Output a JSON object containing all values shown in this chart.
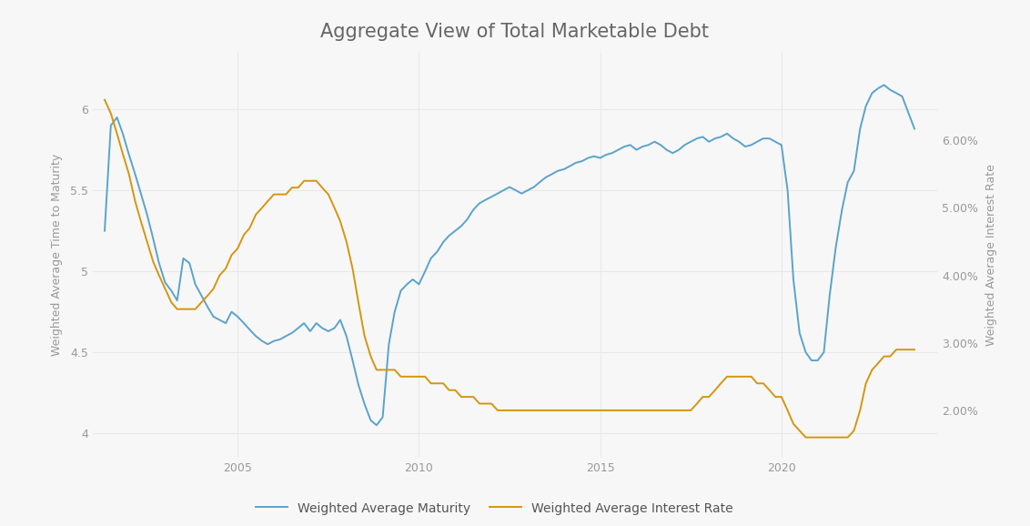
{
  "title": "Aggregate View of Total Marketable Debt",
  "ylabel_left": "Weighted Average Time to Maturity",
  "ylabel_right": "Weighted Average Interest Rate",
  "line1_label": "Weighted Average Maturity",
  "line2_label": "Weighted Average Interest Rate",
  "line1_color": "#5ba3c9",
  "line2_color": "#d4960f",
  "background_color": "#f7f7f7",
  "grid_color": "#e8e8e8",
  "ylim_left": [
    3.85,
    6.35
  ],
  "ylim_right": [
    0.013,
    0.073
  ],
  "yticks_left": [
    4.0,
    4.5,
    5.0,
    5.5,
    6.0
  ],
  "yticks_right": [
    0.02,
    0.03,
    0.04,
    0.05,
    0.06
  ],
  "title_fontsize": 15,
  "label_fontsize": 9,
  "tick_fontsize": 9,
  "legend_fontsize": 10,
  "line_width": 1.4,
  "maturity_data": [
    [
      2001.33,
      5.25
    ],
    [
      2001.5,
      5.9
    ],
    [
      2001.67,
      5.95
    ],
    [
      2001.83,
      5.85
    ],
    [
      2002.0,
      5.72
    ],
    [
      2002.17,
      5.6
    ],
    [
      2002.33,
      5.48
    ],
    [
      2002.5,
      5.35
    ],
    [
      2002.67,
      5.2
    ],
    [
      2002.83,
      5.05
    ],
    [
      2003.0,
      4.93
    ],
    [
      2003.17,
      4.88
    ],
    [
      2003.33,
      4.82
    ],
    [
      2003.5,
      5.08
    ],
    [
      2003.67,
      5.05
    ],
    [
      2003.83,
      4.92
    ],
    [
      2004.0,
      4.85
    ],
    [
      2004.17,
      4.78
    ],
    [
      2004.33,
      4.72
    ],
    [
      2004.5,
      4.7
    ],
    [
      2004.67,
      4.68
    ],
    [
      2004.83,
      4.75
    ],
    [
      2005.0,
      4.72
    ],
    [
      2005.17,
      4.68
    ],
    [
      2005.33,
      4.64
    ],
    [
      2005.5,
      4.6
    ],
    [
      2005.67,
      4.57
    ],
    [
      2005.83,
      4.55
    ],
    [
      2006.0,
      4.57
    ],
    [
      2006.17,
      4.58
    ],
    [
      2006.33,
      4.6
    ],
    [
      2006.5,
      4.62
    ],
    [
      2006.67,
      4.65
    ],
    [
      2006.83,
      4.68
    ],
    [
      2007.0,
      4.63
    ],
    [
      2007.17,
      4.68
    ],
    [
      2007.33,
      4.65
    ],
    [
      2007.5,
      4.63
    ],
    [
      2007.67,
      4.65
    ],
    [
      2007.83,
      4.7
    ],
    [
      2008.0,
      4.6
    ],
    [
      2008.17,
      4.45
    ],
    [
      2008.33,
      4.3
    ],
    [
      2008.5,
      4.18
    ],
    [
      2008.67,
      4.08
    ],
    [
      2008.83,
      4.05
    ],
    [
      2009.0,
      4.1
    ],
    [
      2009.17,
      4.55
    ],
    [
      2009.33,
      4.75
    ],
    [
      2009.5,
      4.88
    ],
    [
      2009.67,
      4.92
    ],
    [
      2009.83,
      4.95
    ],
    [
      2010.0,
      4.92
    ],
    [
      2010.17,
      5.0
    ],
    [
      2010.33,
      5.08
    ],
    [
      2010.5,
      5.12
    ],
    [
      2010.67,
      5.18
    ],
    [
      2010.83,
      5.22
    ],
    [
      2011.0,
      5.25
    ],
    [
      2011.17,
      5.28
    ],
    [
      2011.33,
      5.32
    ],
    [
      2011.5,
      5.38
    ],
    [
      2011.67,
      5.42
    ],
    [
      2011.83,
      5.44
    ],
    [
      2012.0,
      5.46
    ],
    [
      2012.17,
      5.48
    ],
    [
      2012.33,
      5.5
    ],
    [
      2012.5,
      5.52
    ],
    [
      2012.67,
      5.5
    ],
    [
      2012.83,
      5.48
    ],
    [
      2013.0,
      5.5
    ],
    [
      2013.17,
      5.52
    ],
    [
      2013.33,
      5.55
    ],
    [
      2013.5,
      5.58
    ],
    [
      2013.67,
      5.6
    ],
    [
      2013.83,
      5.62
    ],
    [
      2014.0,
      5.63
    ],
    [
      2014.17,
      5.65
    ],
    [
      2014.33,
      5.67
    ],
    [
      2014.5,
      5.68
    ],
    [
      2014.67,
      5.7
    ],
    [
      2014.83,
      5.71
    ],
    [
      2015.0,
      5.7
    ],
    [
      2015.17,
      5.72
    ],
    [
      2015.33,
      5.73
    ],
    [
      2015.5,
      5.75
    ],
    [
      2015.67,
      5.77
    ],
    [
      2015.83,
      5.78
    ],
    [
      2016.0,
      5.75
    ],
    [
      2016.17,
      5.77
    ],
    [
      2016.33,
      5.78
    ],
    [
      2016.5,
      5.8
    ],
    [
      2016.67,
      5.78
    ],
    [
      2016.83,
      5.75
    ],
    [
      2017.0,
      5.73
    ],
    [
      2017.17,
      5.75
    ],
    [
      2017.33,
      5.78
    ],
    [
      2017.5,
      5.8
    ],
    [
      2017.67,
      5.82
    ],
    [
      2017.83,
      5.83
    ],
    [
      2018.0,
      5.8
    ],
    [
      2018.17,
      5.82
    ],
    [
      2018.33,
      5.83
    ],
    [
      2018.5,
      5.85
    ],
    [
      2018.67,
      5.82
    ],
    [
      2018.83,
      5.8
    ],
    [
      2019.0,
      5.77
    ],
    [
      2019.17,
      5.78
    ],
    [
      2019.33,
      5.8
    ],
    [
      2019.5,
      5.82
    ],
    [
      2019.67,
      5.82
    ],
    [
      2019.83,
      5.8
    ],
    [
      2020.0,
      5.78
    ],
    [
      2020.17,
      5.5
    ],
    [
      2020.33,
      4.95
    ],
    [
      2020.5,
      4.62
    ],
    [
      2020.67,
      4.5
    ],
    [
      2020.83,
      4.45
    ],
    [
      2021.0,
      4.45
    ],
    [
      2021.17,
      4.5
    ],
    [
      2021.33,
      4.85
    ],
    [
      2021.5,
      5.15
    ],
    [
      2021.67,
      5.38
    ],
    [
      2021.83,
      5.55
    ],
    [
      2022.0,
      5.62
    ],
    [
      2022.17,
      5.88
    ],
    [
      2022.33,
      6.02
    ],
    [
      2022.5,
      6.1
    ],
    [
      2022.67,
      6.13
    ],
    [
      2022.83,
      6.15
    ],
    [
      2023.0,
      6.12
    ],
    [
      2023.17,
      6.1
    ],
    [
      2023.33,
      6.08
    ],
    [
      2023.5,
      5.98
    ],
    [
      2023.67,
      5.88
    ]
  ],
  "interest_data": [
    [
      2001.33,
      0.066
    ],
    [
      2001.5,
      0.064
    ],
    [
      2001.67,
      0.061
    ],
    [
      2001.83,
      0.058
    ],
    [
      2002.0,
      0.055
    ],
    [
      2002.17,
      0.051
    ],
    [
      2002.33,
      0.048
    ],
    [
      2002.5,
      0.045
    ],
    [
      2002.67,
      0.042
    ],
    [
      2002.83,
      0.04
    ],
    [
      2003.0,
      0.038
    ],
    [
      2003.17,
      0.036
    ],
    [
      2003.33,
      0.035
    ],
    [
      2003.5,
      0.035
    ],
    [
      2003.67,
      0.035
    ],
    [
      2003.83,
      0.035
    ],
    [
      2004.0,
      0.036
    ],
    [
      2004.17,
      0.037
    ],
    [
      2004.33,
      0.038
    ],
    [
      2004.5,
      0.04
    ],
    [
      2004.67,
      0.041
    ],
    [
      2004.83,
      0.043
    ],
    [
      2005.0,
      0.044
    ],
    [
      2005.17,
      0.046
    ],
    [
      2005.33,
      0.047
    ],
    [
      2005.5,
      0.049
    ],
    [
      2005.67,
      0.05
    ],
    [
      2005.83,
      0.051
    ],
    [
      2006.0,
      0.052
    ],
    [
      2006.17,
      0.052
    ],
    [
      2006.33,
      0.052
    ],
    [
      2006.5,
      0.053
    ],
    [
      2006.67,
      0.053
    ],
    [
      2006.83,
      0.054
    ],
    [
      2007.0,
      0.054
    ],
    [
      2007.17,
      0.054
    ],
    [
      2007.33,
      0.053
    ],
    [
      2007.5,
      0.052
    ],
    [
      2007.67,
      0.05
    ],
    [
      2007.83,
      0.048
    ],
    [
      2008.0,
      0.045
    ],
    [
      2008.17,
      0.041
    ],
    [
      2008.33,
      0.036
    ],
    [
      2008.5,
      0.031
    ],
    [
      2008.67,
      0.028
    ],
    [
      2008.83,
      0.026
    ],
    [
      2009.0,
      0.026
    ],
    [
      2009.17,
      0.026
    ],
    [
      2009.33,
      0.026
    ],
    [
      2009.5,
      0.025
    ],
    [
      2009.67,
      0.025
    ],
    [
      2009.83,
      0.025
    ],
    [
      2010.0,
      0.025
    ],
    [
      2010.17,
      0.025
    ],
    [
      2010.33,
      0.024
    ],
    [
      2010.5,
      0.024
    ],
    [
      2010.67,
      0.024
    ],
    [
      2010.83,
      0.023
    ],
    [
      2011.0,
      0.023
    ],
    [
      2011.17,
      0.022
    ],
    [
      2011.33,
      0.022
    ],
    [
      2011.5,
      0.022
    ],
    [
      2011.67,
      0.021
    ],
    [
      2011.83,
      0.021
    ],
    [
      2012.0,
      0.021
    ],
    [
      2012.17,
      0.02
    ],
    [
      2012.33,
      0.02
    ],
    [
      2012.5,
      0.02
    ],
    [
      2012.67,
      0.02
    ],
    [
      2012.83,
      0.02
    ],
    [
      2013.0,
      0.02
    ],
    [
      2013.17,
      0.02
    ],
    [
      2013.33,
      0.02
    ],
    [
      2013.5,
      0.02
    ],
    [
      2013.67,
      0.02
    ],
    [
      2013.83,
      0.02
    ],
    [
      2014.0,
      0.02
    ],
    [
      2014.17,
      0.02
    ],
    [
      2014.33,
      0.02
    ],
    [
      2014.5,
      0.02
    ],
    [
      2014.67,
      0.02
    ],
    [
      2014.83,
      0.02
    ],
    [
      2015.0,
      0.02
    ],
    [
      2015.17,
      0.02
    ],
    [
      2015.33,
      0.02
    ],
    [
      2015.5,
      0.02
    ],
    [
      2015.67,
      0.02
    ],
    [
      2015.83,
      0.02
    ],
    [
      2016.0,
      0.02
    ],
    [
      2016.17,
      0.02
    ],
    [
      2016.33,
      0.02
    ],
    [
      2016.5,
      0.02
    ],
    [
      2016.67,
      0.02
    ],
    [
      2016.83,
      0.02
    ],
    [
      2017.0,
      0.02
    ],
    [
      2017.17,
      0.02
    ],
    [
      2017.33,
      0.02
    ],
    [
      2017.5,
      0.02
    ],
    [
      2017.67,
      0.021
    ],
    [
      2017.83,
      0.022
    ],
    [
      2018.0,
      0.022
    ],
    [
      2018.17,
      0.023
    ],
    [
      2018.33,
      0.024
    ],
    [
      2018.5,
      0.025
    ],
    [
      2018.67,
      0.025
    ],
    [
      2018.83,
      0.025
    ],
    [
      2019.0,
      0.025
    ],
    [
      2019.17,
      0.025
    ],
    [
      2019.33,
      0.024
    ],
    [
      2019.5,
      0.024
    ],
    [
      2019.67,
      0.023
    ],
    [
      2019.83,
      0.022
    ],
    [
      2020.0,
      0.022
    ],
    [
      2020.17,
      0.02
    ],
    [
      2020.33,
      0.018
    ],
    [
      2020.5,
      0.017
    ],
    [
      2020.67,
      0.016
    ],
    [
      2020.83,
      0.016
    ],
    [
      2021.0,
      0.016
    ],
    [
      2021.17,
      0.016
    ],
    [
      2021.33,
      0.016
    ],
    [
      2021.5,
      0.016
    ],
    [
      2021.67,
      0.016
    ],
    [
      2021.83,
      0.016
    ],
    [
      2022.0,
      0.017
    ],
    [
      2022.17,
      0.02
    ],
    [
      2022.33,
      0.024
    ],
    [
      2022.5,
      0.026
    ],
    [
      2022.67,
      0.027
    ],
    [
      2022.83,
      0.028
    ],
    [
      2023.0,
      0.028
    ],
    [
      2023.17,
      0.029
    ],
    [
      2023.33,
      0.029
    ],
    [
      2023.5,
      0.029
    ],
    [
      2023.67,
      0.029
    ]
  ]
}
